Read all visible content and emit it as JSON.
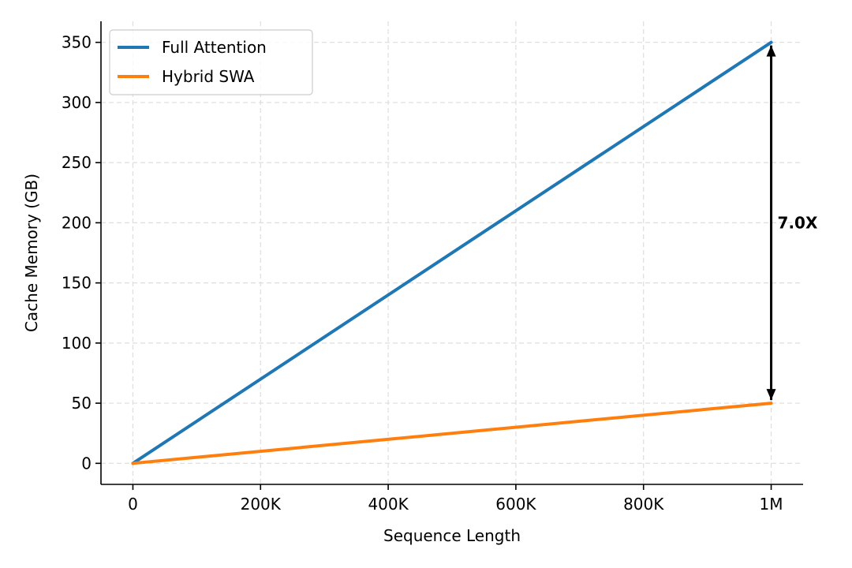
{
  "chart_data": {
    "type": "line",
    "title": "",
    "xlabel": "Sequence Length",
    "ylabel": "Cache Memory (GB)",
    "x": [
      0,
      1000000
    ],
    "xlim": [
      -50000,
      1050000
    ],
    "ylim": [
      -17.5,
      367.5
    ],
    "xticks": [
      0,
      200000,
      400000,
      600000,
      800000,
      1000000
    ],
    "xtick_labels": [
      "0",
      "200K",
      "400K",
      "600K",
      "800K",
      "1M"
    ],
    "yticks": [
      0,
      50,
      100,
      150,
      200,
      250,
      300,
      350
    ],
    "ytick_labels": [
      "0",
      "50",
      "100",
      "150",
      "200",
      "250",
      "300",
      "350"
    ],
    "grid": true,
    "legend_position": "top-left",
    "series": [
      {
        "name": "Full Attention",
        "values": [
          0,
          350
        ],
        "color": "#1f77b4"
      },
      {
        "name": "Hybrid SWA",
        "values": [
          0,
          50
        ],
        "color": "#ff7f0e"
      }
    ],
    "annotation": {
      "text": "7.0X",
      "x": 1000000,
      "y_from": 50,
      "y_to": 350
    }
  }
}
